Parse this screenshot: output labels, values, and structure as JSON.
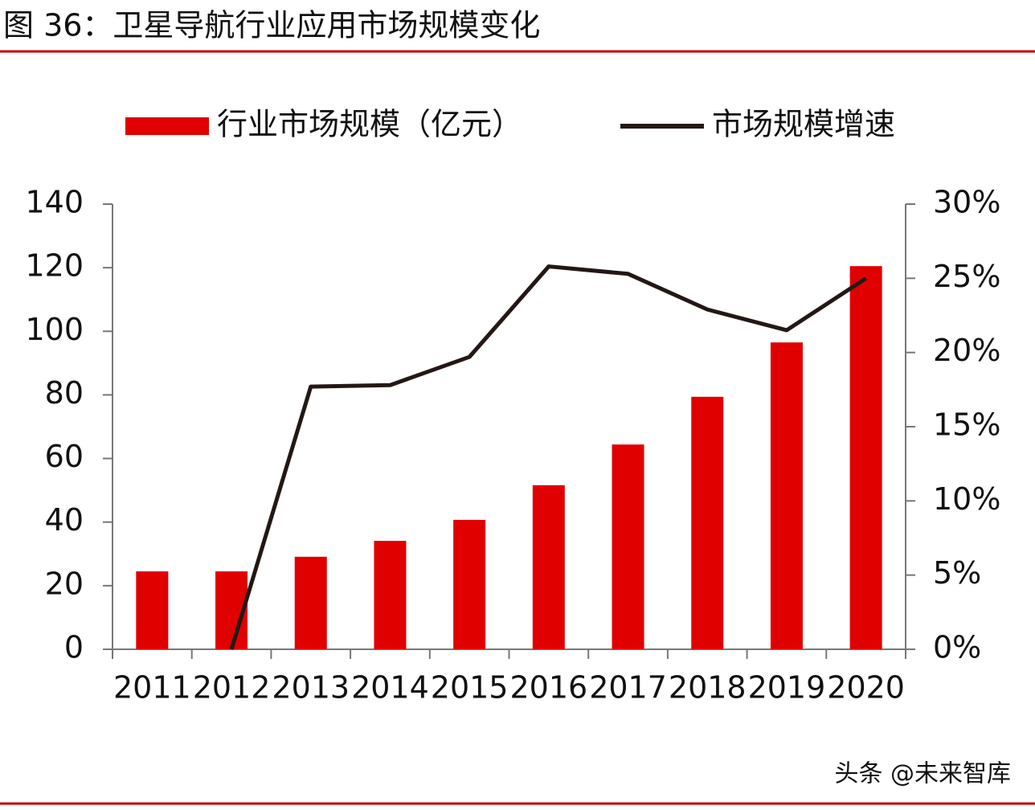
{
  "chart_data": {
    "type": "bar-line",
    "title": "图 36：卫星导航行业应用市场规模变化",
    "watermark": "头条 @未来智库",
    "categories": [
      "2011",
      "2012",
      "2013",
      "2014",
      "2015",
      "2016",
      "2017",
      "2018",
      "2019",
      "2020"
    ],
    "series": [
      {
        "name": "行业市场规模（亿元）",
        "type": "bar",
        "color": "#e00000",
        "values": [
          24.5,
          24.5,
          29.1,
          34.1,
          40.7,
          51.6,
          64.4,
          79.4,
          96.5,
          120.5
        ]
      },
      {
        "name": "市场规模增速",
        "type": "line",
        "axis": "y2",
        "color": "#231815",
        "values": [
          null,
          0,
          17.7,
          17.8,
          19.7,
          25.8,
          25.3,
          22.9,
          21.5,
          25.0
        ]
      }
    ],
    "ylim": [
      0,
      140
    ],
    "yticks": [
      0,
      20,
      40,
      60,
      80,
      100,
      120,
      140
    ],
    "y2lim": [
      0,
      30
    ],
    "y2ticks": [
      {
        "value": 0,
        "label": "0%"
      },
      {
        "value": 5,
        "label": "5%"
      },
      {
        "value": 10,
        "label": "10%"
      },
      {
        "value": 15,
        "label": "15%"
      },
      {
        "value": 20,
        "label": "20%"
      },
      {
        "value": 25,
        "label": "25%"
      },
      {
        "value": 30,
        "label": "30%"
      }
    ],
    "legend": "top",
    "grid": false
  }
}
